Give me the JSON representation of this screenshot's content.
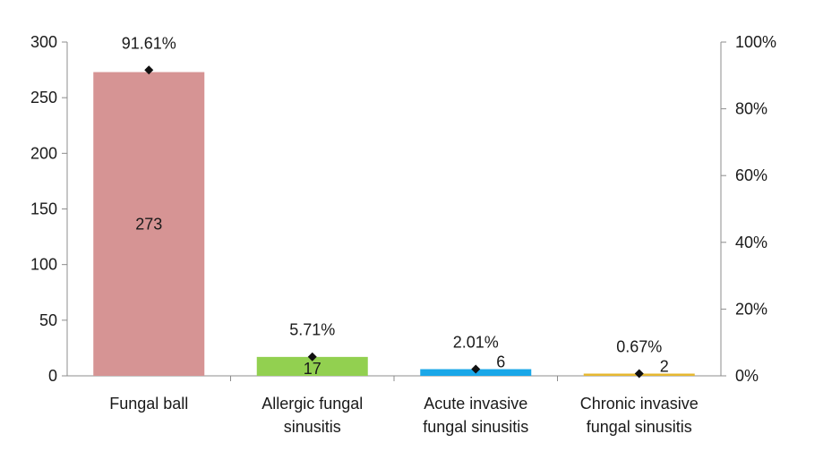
{
  "chart_data": {
    "type": "bar",
    "categories": [
      [
        "Fungal ball"
      ],
      [
        "Allergic fungal",
        "sinusitis"
      ],
      [
        "Acute invasive",
        "fungal sinusitis"
      ],
      [
        "Chronic invasive",
        "fungal sinusitis"
      ]
    ],
    "series": [
      {
        "values": [
          273,
          17,
          6,
          2
        ],
        "value_labels": [
          "273",
          "17",
          "6",
          "2"
        ],
        "axis": "left",
        "kind": "bar"
      },
      {
        "values": [
          91.61,
          5.71,
          2.01,
          0.67
        ],
        "value_labels": [
          "91.61%",
          "5.71%",
          "2.01%",
          "0.67%"
        ],
        "axis": "right",
        "kind": "marker"
      }
    ],
    "bar_colors": [
      "#d69494",
      "#92d050",
      "#1aa7e8",
      "#e6b830"
    ],
    "marker_color": "#111111",
    "y_left": {
      "min": 0,
      "max": 300,
      "ticks": [
        0,
        50,
        100,
        150,
        200,
        250,
        300
      ],
      "tick_labels": [
        "0",
        "50",
        "100",
        "150",
        "200",
        "250",
        "300"
      ]
    },
    "y_right": {
      "min": 0,
      "max": 100,
      "ticks": [
        0,
        20,
        40,
        60,
        80,
        100
      ],
      "tick_labels": [
        "0%",
        "20%",
        "40%",
        "60%",
        "80%",
        "100%"
      ]
    },
    "title": "",
    "xlabel": "",
    "ylabel": "",
    "legend": "none",
    "grid": false
  }
}
